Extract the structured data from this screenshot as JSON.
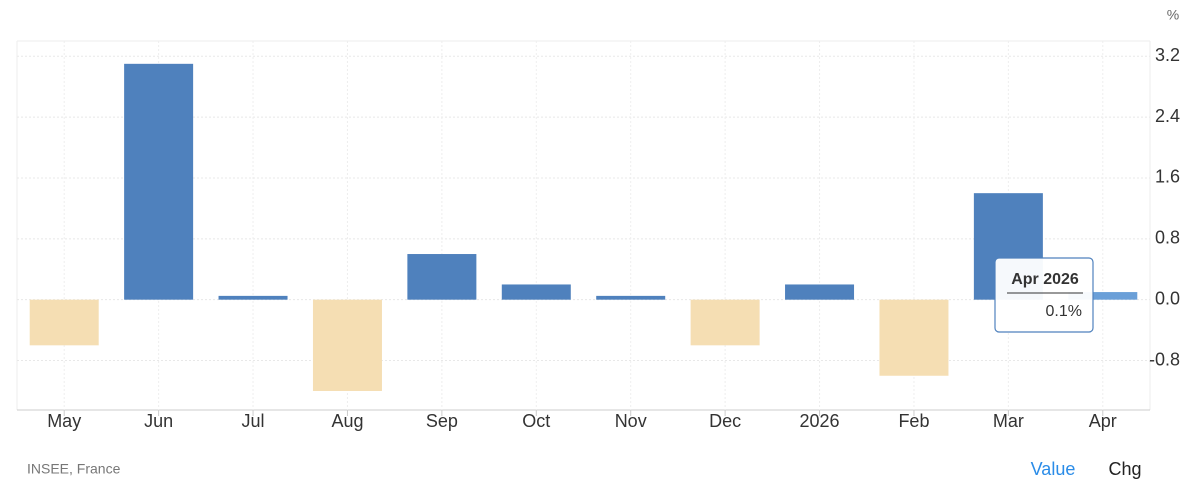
{
  "chart_data": {
    "type": "bar",
    "unit": "%",
    "categories": [
      "May",
      "Jun",
      "Jul",
      "Aug",
      "Sep",
      "Oct",
      "Nov",
      "Dec",
      "2026",
      "Feb",
      "Mar",
      "Apr"
    ],
    "values": [
      -0.6,
      3.1,
      0.05,
      -1.2,
      0.6,
      0.2,
      0.05,
      -0.6,
      0.2,
      -1.0,
      1.4,
      0.1
    ],
    "color": "#4f81bd",
    "negative_color": "#f5deb3",
    "ylim": [
      -1.45,
      3.4
    ],
    "yticks": [
      -0.8,
      {
        "value": 0,
        "label": "0.0"
      },
      0.8,
      1.6,
      2.4,
      3.2
    ],
    "grid": true,
    "tooltip": {
      "title": "Apr 2026",
      "label": "0.1%"
    },
    "source": "INSEE, France",
    "buttons": [
      "Value",
      "Chg"
    ]
  }
}
